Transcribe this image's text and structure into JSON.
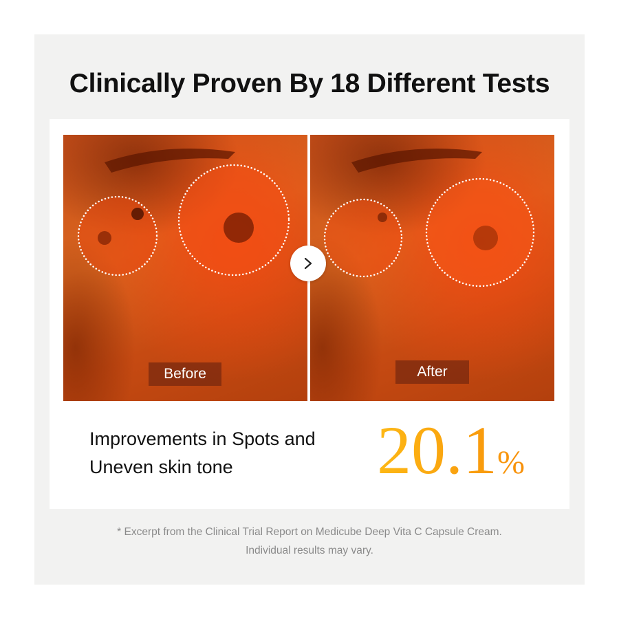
{
  "title": "Clinically Proven By 18 Different Tests",
  "comparison": {
    "before_label": "Before",
    "after_label": "After",
    "arrow_icon": "chevron-right-icon"
  },
  "result": {
    "line1": "Improvements in Spots and",
    "line2": "Uneven skin tone",
    "value": "20.1",
    "unit": "%",
    "value_color": "#f7a00e"
  },
  "footnote": {
    "line1": "* Excerpt from the Clinical Trial Report on Medicube Deep Vita C Capsule Cream.",
    "line2": "Individual results may vary."
  }
}
